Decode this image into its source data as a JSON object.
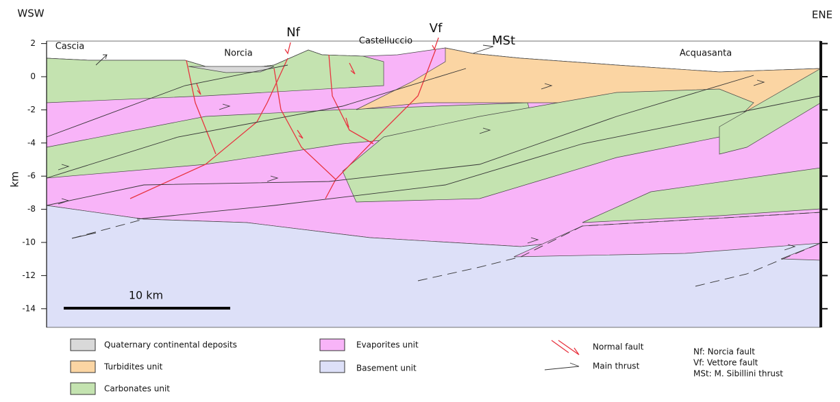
{
  "header": {
    "left": "WSW",
    "right": "ENE"
  },
  "axis": {
    "label": "km",
    "ticks": [
      2,
      0,
      -2,
      -4,
      -6,
      -8,
      -10,
      -12,
      -14
    ]
  },
  "places": [
    "Cascia",
    "Norcia",
    "Castelluccio",
    "Acquasanta"
  ],
  "fault_labels": [
    "Nf",
    "Vf",
    "MSt"
  ],
  "scale_bar": "10 km",
  "legend": [
    "Quaternary continental deposits",
    "Turbidites unit",
    "Carbonates unit",
    "Evaporites unit",
    "Basement unit"
  ],
  "symbols": [
    "Normal fault",
    "Main thrust"
  ],
  "notes": [
    "Nf: Norcia fault",
    "Vf: Vettore fault",
    "MSt: M. Sibillini thrust"
  ]
}
